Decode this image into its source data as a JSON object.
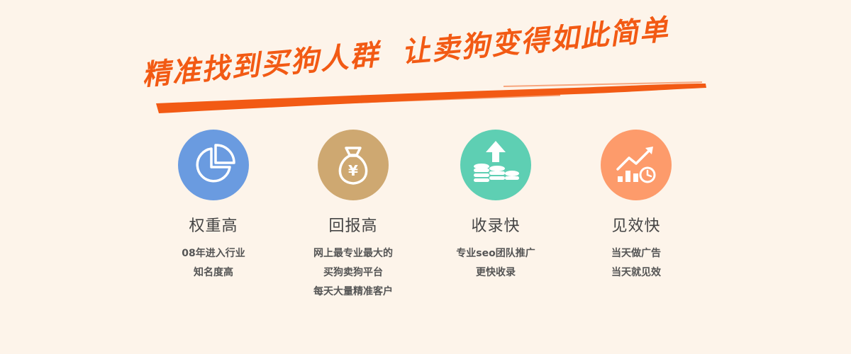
{
  "headline": "精准找到买狗人群  让卖狗变得如此简单",
  "colors": {
    "background": "#fdf4ea",
    "accent": "#f25a14",
    "blue": "#6a9be0",
    "tan": "#cea871",
    "teal": "#5ecfb3",
    "orange": "#fd9b6b"
  },
  "features": [
    {
      "icon": "pie-chart-icon",
      "title": "权重高",
      "desc": [
        "08年进入行业",
        "知名度高"
      ]
    },
    {
      "icon": "money-bag-icon",
      "title": "回报高",
      "desc": [
        "网上最专业最大的",
        "买狗卖狗平台",
        "每天大量精准客户"
      ]
    },
    {
      "icon": "coins-upload-icon",
      "title": "收录快",
      "desc": [
        "专业seo团队推广",
        "更快收录"
      ]
    },
    {
      "icon": "growth-chart-icon",
      "title": "见效快",
      "desc": [
        "当天做广告",
        "当天就见效"
      ]
    }
  ]
}
